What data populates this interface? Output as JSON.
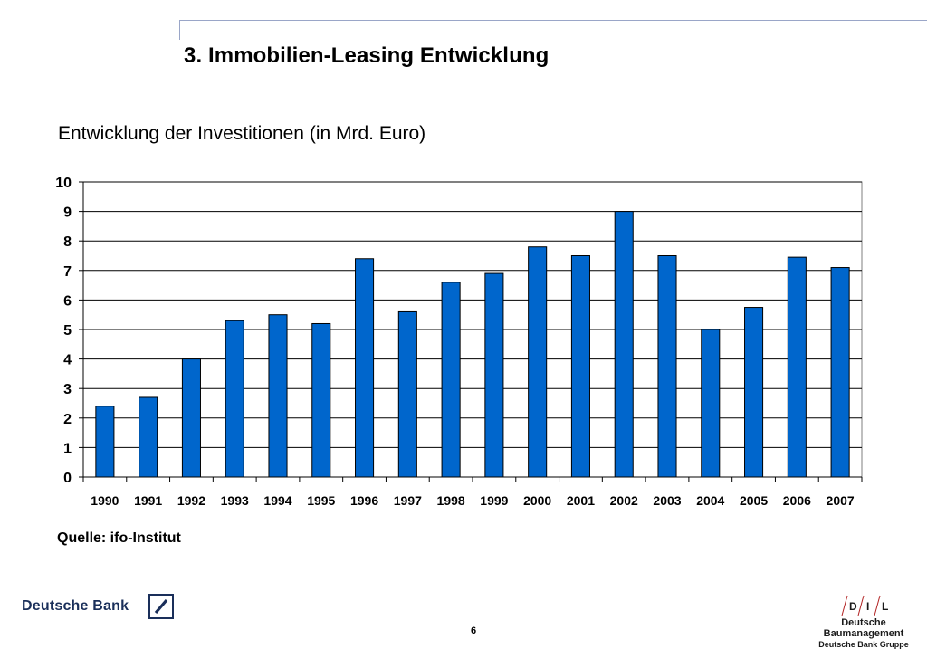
{
  "page": {
    "title": "3. Immobilien-Leasing Entwicklung",
    "source": "Quelle: ifo-Institut",
    "page_number": "6"
  },
  "branding": {
    "left_name": "Deutsche Bank",
    "right_letters": [
      "D",
      "I",
      "L"
    ],
    "right_name": "Deutsche Baumanagement",
    "right_subname": "Deutsche Bank Gruppe",
    "brand_color": "#1a2f5a"
  },
  "chart_data": {
    "type": "bar",
    "title": "Entwicklung der Investitionen (in Mrd. Euro)",
    "xlabel": "",
    "ylabel": "",
    "categories": [
      "1990",
      "1991",
      "1992",
      "1993",
      "1994",
      "1995",
      "1996",
      "1997",
      "1998",
      "1999",
      "2000",
      "2001",
      "2002",
      "2003",
      "2004",
      "2005",
      "2006",
      "2007"
    ],
    "values": [
      2.4,
      2.7,
      4.0,
      5.3,
      5.5,
      5.2,
      7.4,
      5.6,
      6.6,
      6.9,
      7.8,
      7.5,
      9.0,
      7.5,
      5.0,
      5.75,
      7.45,
      7.1
    ],
    "ylim": [
      0,
      10
    ],
    "yticks": [
      0,
      1,
      2,
      3,
      4,
      5,
      6,
      7,
      8,
      9,
      10
    ],
    "grid": true,
    "legend": "none",
    "bar_color": "#0066cc",
    "bar_stroke": "#000000",
    "grid_color": "#000000"
  }
}
